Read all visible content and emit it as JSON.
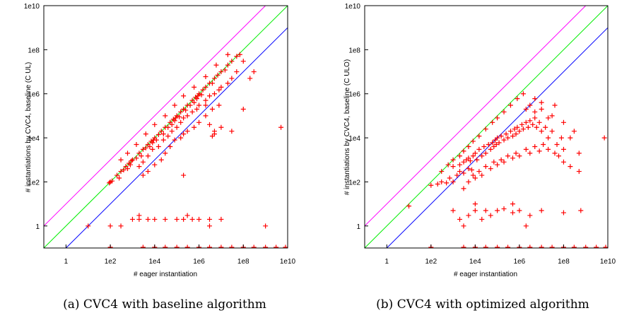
{
  "chart_data": [
    {
      "type": "scatter",
      "title": "",
      "xlabel": "# eager instantiation",
      "ylabel": "# instantiations by CVC4, baseline (C UL)",
      "caption": "(a) CVC4 with baseline algorithm",
      "x_scale": "log",
      "y_scale": "log",
      "xlim": [
        0.1,
        10000000000
      ],
      "ylim": [
        0.1,
        10000000000
      ],
      "x_ticks": [
        {
          "v": 1,
          "label": "1"
        },
        {
          "v": 100,
          "label": "1e2"
        },
        {
          "v": 10000,
          "label": "1e4"
        },
        {
          "v": 1000000,
          "label": "1e6"
        },
        {
          "v": 100000000,
          "label": "1e8"
        },
        {
          "v": 10000000000,
          "label": "1e10"
        }
      ],
      "y_ticks": [
        {
          "v": 1,
          "label": "1"
        },
        {
          "v": 100,
          "label": "1e2"
        },
        {
          "v": 10000,
          "label": "1e4"
        },
        {
          "v": 1000000,
          "label": "1e6"
        },
        {
          "v": 100000000,
          "label": "1e8"
        },
        {
          "v": 10000000000,
          "label": "1e10"
        }
      ],
      "grid": false,
      "marker": "+",
      "marker_color": "#ff0000",
      "reference_lines": [
        {
          "name": "y = 10x",
          "factor": 10,
          "color": "#ff00ff"
        },
        {
          "name": "y = x",
          "factor": 1,
          "color": "#00ee00"
        },
        {
          "name": "y = x/10",
          "factor": 0.1,
          "color": "#0000ff"
        }
      ],
      "points": [
        [
          10,
          1
        ],
        [
          100.0,
          1
        ],
        [
          300.0,
          1
        ],
        [
          1000.0,
          2
        ],
        [
          2000.0,
          2
        ],
        [
          5000.0,
          2
        ],
        [
          10000.0,
          2
        ],
        [
          30000.0,
          2
        ],
        [
          100000.0,
          2
        ],
        [
          200000.0,
          2
        ],
        [
          500000.0,
          2
        ],
        [
          1000000.0,
          2
        ],
        [
          3000000.0,
          2
        ],
        [
          10000000.0,
          2
        ],
        [
          2000.0,
          3
        ],
        [
          300000.0,
          3
        ],
        [
          3000000.0,
          1
        ],
        [
          1000000000.0,
          1
        ],
        [
          90,
          90
        ],
        [
          100,
          100
        ],
        [
          120,
          110
        ],
        [
          200,
          200
        ],
        [
          250,
          150
        ],
        [
          300,
          300
        ],
        [
          400,
          350
        ],
        [
          500,
          500
        ],
        [
          600,
          400
        ],
        [
          700,
          700
        ],
        [
          800,
          600
        ],
        [
          900,
          900
        ],
        [
          1000.0,
          1000.0
        ],
        [
          1500.0,
          1200.0
        ],
        [
          2000.0,
          2000.0
        ],
        [
          2500.0,
          1500.0
        ],
        [
          3000.0,
          3000.0
        ],
        [
          4000.0,
          3500.0
        ],
        [
          5000.0,
          5000.0
        ],
        [
          6000.0,
          4000.0
        ],
        [
          7000.0,
          7000.0
        ],
        [
          8000.0,
          6000.0
        ],
        [
          9000.0,
          8000.0
        ],
        [
          10000.0,
          10000.0
        ],
        [
          12000.0,
          8000.0
        ],
        [
          15000.0,
          14000.0
        ],
        [
          20000.0,
          20000.0
        ],
        [
          25000.0,
          15000.0
        ],
        [
          30000.0,
          30000.0
        ],
        [
          40000.0,
          30000.0
        ],
        [
          50000.0,
          50000.0
        ],
        [
          60000.0,
          40000.0
        ],
        [
          70000.0,
          70000.0
        ],
        [
          80000.0,
          60000.0
        ],
        [
          90000.0,
          80000.0
        ],
        [
          100000.0,
          100000.0
        ],
        [
          130000.0,
          90000.0
        ],
        [
          150000.0,
          150000.0
        ],
        [
          200000.0,
          200000.0
        ],
        [
          250000.0,
          180000.0
        ],
        [
          300000.0,
          300000.0
        ],
        [
          400000.0,
          300000.0
        ],
        [
          500000.0,
          500000.0
        ],
        [
          600000.0,
          400000.0
        ],
        [
          700000.0,
          700000.0
        ],
        [
          800000.0,
          600000.0
        ],
        [
          900000.0,
          800000.0
        ],
        [
          1000000.0,
          1000000.0
        ],
        [
          1300000.0,
          900000.0
        ],
        [
          1500000.0,
          1500000.0
        ],
        [
          2000000.0,
          2000000.0
        ],
        [
          3000000.0,
          3000000.0
        ],
        [
          4000000.0,
          3000000.0
        ],
        [
          5000000.0,
          5000000.0
        ],
        [
          7000000.0,
          7000000.0
        ],
        [
          10000000.0,
          10000000.0
        ],
        [
          15000000.0,
          12000000.0
        ],
        [
          20000000.0,
          20000000.0
        ],
        [
          30000000.0,
          30000000.0
        ],
        [
          50000000.0,
          50000000.0
        ],
        [
          70000000.0,
          60000000.0
        ],
        [
          2000.0,
          500.0
        ],
        [
          3000.0,
          800.0
        ],
        [
          5000.0,
          1500.0
        ],
        [
          8000.0,
          3000.0
        ],
        [
          15000.0,
          4000.0
        ],
        [
          25000.0,
          8000.0
        ],
        [
          40000.0,
          12000.0
        ],
        [
          60000.0,
          20000.0
        ],
        [
          100000.0,
          30000.0
        ],
        [
          150000.0,
          50000.0
        ],
        [
          200000.0,
          80000.0
        ],
        [
          300000.0,
          100000.0
        ],
        [
          500000.0,
          150000.0
        ],
        [
          800000.0,
          200000.0
        ],
        [
          1000000.0,
          300000.0
        ],
        [
          2000000.0,
          500000.0
        ],
        [
          3000000.0,
          800000.0
        ],
        [
          5000000.0,
          1000000.0
        ],
        [
          8000000.0,
          1500000.0
        ],
        [
          10000000.0,
          2000000.0
        ],
        [
          20000000.0,
          3000000.0
        ],
        [
          30000000.0,
          5000000.0
        ],
        [
          50000000.0,
          10000000.0
        ],
        [
          100000000.0,
          30000000.0
        ],
        [
          200000000.0,
          5000000.0
        ],
        [
          300000000.0,
          10000000.0
        ],
        [
          3000.0,
          200.0
        ],
        [
          5000.0,
          300.0
        ],
        [
          10000.0,
          600.0
        ],
        [
          20000.0,
          1000.0
        ],
        [
          30000.0,
          2000.0
        ],
        [
          50000.0,
          4000.0
        ],
        [
          80000.0,
          8000.0
        ],
        [
          150000.0,
          10000.0
        ],
        [
          300000.0,
          20000.0
        ],
        [
          600000.0,
          30000.0
        ],
        [
          1000000.0,
          50000.0
        ],
        [
          2000000.0,
          100000.0
        ],
        [
          4000000.0,
          200000.0
        ],
        [
          8000000.0,
          300000.0
        ],
        [
          3000000.0,
          40000.0
        ],
        [
          5000000.0,
          20000.0
        ],
        [
          10000000.0,
          30000.0
        ],
        [
          30000000.0,
          20000.0
        ],
        [
          5000000.0,
          15000.0
        ],
        [
          4000000.0,
          12000.0
        ],
        [
          200000.0,
          15000.0
        ],
        [
          2000000.0,
          300000.0
        ],
        [
          100000000.0,
          200000.0
        ],
        [
          200000.0,
          200
        ],
        [
          5000000000.0,
          30000.0
        ],
        [
          300,
          1000.0
        ],
        [
          600,
          2000.0
        ],
        [
          1500.0,
          5000.0
        ],
        [
          4000.0,
          15000.0
        ],
        [
          10000.0,
          40000.0
        ],
        [
          30000.0,
          100000.0
        ],
        [
          80000.0,
          300000.0
        ],
        [
          200000.0,
          800000.0
        ],
        [
          600000.0,
          2000000.0
        ],
        [
          2000000.0,
          6000000.0
        ],
        [
          6000000.0,
          20000000.0
        ],
        [
          20000000.0,
          60000000.0
        ]
      ]
    },
    {
      "type": "scatter",
      "title": "",
      "xlabel": "# eager instantiation",
      "ylabel": "# instantiations by CVC4, baseline (C ULO)",
      "caption": "(b) CVC4 with optimized algorithm",
      "x_scale": "log",
      "y_scale": "log",
      "xlim": [
        0.1,
        10000000000
      ],
      "ylim": [
        0.1,
        10000000000
      ],
      "x_ticks": [
        {
          "v": 1,
          "label": "1"
        },
        {
          "v": 100,
          "label": "1e2"
        },
        {
          "v": 10000,
          "label": "1e4"
        },
        {
          "v": 1000000,
          "label": "1e6"
        },
        {
          "v": 100000000,
          "label": "1e8"
        },
        {
          "v": 10000000000,
          "label": "1e10"
        }
      ],
      "y_ticks": [
        {
          "v": 1,
          "label": "1"
        },
        {
          "v": 100,
          "label": "1e2"
        },
        {
          "v": 10000,
          "label": "1e4"
        },
        {
          "v": 1000000,
          "label": "1e6"
        },
        {
          "v": 100000000,
          "label": "1e8"
        },
        {
          "v": 10000000000,
          "label": "1e10"
        }
      ],
      "grid": false,
      "marker": "+",
      "marker_color": "#ff0000",
      "reference_lines": [
        {
          "name": "y = 10x",
          "factor": 10,
          "color": "#ff00ff"
        },
        {
          "name": "y = x",
          "factor": 1,
          "color": "#00ee00"
        },
        {
          "name": "y = x/10",
          "factor": 0.1,
          "color": "#0000ff"
        }
      ],
      "points": [
        [
          10,
          8
        ],
        [
          100,
          70
        ],
        [
          200,
          80
        ],
        [
          300,
          100
        ],
        [
          500,
          90
        ],
        [
          700,
          150
        ],
        [
          1000.0,
          100
        ],
        [
          1500.0,
          200
        ],
        [
          2000.0,
          300
        ],
        [
          3000.0,
          250
        ],
        [
          5000.0,
          400
        ],
        [
          7000.0,
          350
        ],
        [
          1000.0,
          500
        ],
        [
          2000.0,
          600
        ],
        [
          3000.0,
          800
        ],
        [
          4000.0,
          1000.0
        ],
        [
          5000.0,
          1200.0
        ],
        [
          6000.0,
          900
        ],
        [
          8000.0,
          1500.0
        ],
        [
          10000.0,
          2000.0
        ],
        [
          12000.0,
          1000.0
        ],
        [
          15000.0,
          3000.0
        ],
        [
          20000.0,
          1500.0
        ],
        [
          25000.0,
          4000.0
        ],
        [
          30000.0,
          2000.0
        ],
        [
          40000.0,
          5000.0
        ],
        [
          50000.0,
          3000.0
        ],
        [
          60000.0,
          6000.0
        ],
        [
          70000.0,
          4000.0
        ],
        [
          80000.0,
          8000.0
        ],
        [
          90000.0,
          5000.0
        ],
        [
          100000.0,
          10000.0
        ],
        [
          120000.0,
          6000.0
        ],
        [
          150000.0,
          12000.0
        ],
        [
          200000.0,
          8000.0
        ],
        [
          250000.0,
          15000.0
        ],
        [
          300000.0,
          10000.0
        ],
        [
          400000.0,
          20000.0
        ],
        [
          500000.0,
          12000.0
        ],
        [
          600000.0,
          25000.0
        ],
        [
          700000.0,
          15000.0
        ],
        [
          800000.0,
          30000.0
        ],
        [
          1000000.0,
          20000.0
        ],
        [
          1300000.0,
          40000.0
        ],
        [
          1500000.0,
          25000.0
        ],
        [
          2000000.0,
          50000.0
        ],
        [
          2500000.0,
          30000.0
        ],
        [
          3000000.0,
          60000.0
        ],
        [
          4000000.0,
          40000.0
        ],
        [
          5000000.0,
          80000.0
        ],
        [
          6000000.0,
          30000.0
        ],
        [
          8000000.0,
          50000.0
        ],
        [
          10000000.0,
          20000.0
        ],
        [
          15000000.0,
          30000.0
        ],
        [
          20000000.0,
          10000.0
        ],
        [
          30000000.0,
          20000.0
        ],
        [
          50000000.0,
          5000.0
        ],
        [
          80000000.0,
          10000.0
        ],
        [
          100000000.0,
          3000.0
        ],
        [
          200000000.0,
          10000.0
        ],
        [
          500000000.0,
          2000.0
        ],
        [
          7000000000.0,
          10000.0
        ],
        [
          3000.0,
          50
        ],
        [
          5000.0,
          100
        ],
        [
          8000.0,
          200
        ],
        [
          10000.0,
          150
        ],
        [
          15000.0,
          300
        ],
        [
          20000.0,
          200
        ],
        [
          30000.0,
          500
        ],
        [
          50000.0,
          400
        ],
        [
          70000.0,
          800
        ],
        [
          100000.0,
          600
        ],
        [
          150000.0,
          1000.0
        ],
        [
          200000.0,
          800
        ],
        [
          300000.0,
          1500.0
        ],
        [
          500000.0,
          1200.0
        ],
        [
          700000.0,
          2000.0
        ],
        [
          1000000.0,
          1500.0
        ],
        [
          2000000.0,
          3000.0
        ],
        [
          3000000.0,
          2000.0
        ],
        [
          5000000.0,
          4000.0
        ],
        [
          8000000.0,
          2500.0
        ],
        [
          12000000.0,
          5000.0
        ],
        [
          20000000.0,
          3000.0
        ],
        [
          40000000.0,
          2000.0
        ],
        [
          60000000.0,
          1500.0
        ],
        [
          100000000.0,
          800
        ],
        [
          200000000.0,
          500
        ],
        [
          500000000.0,
          300
        ],
        [
          300,
          300
        ],
        [
          600,
          600
        ],
        [
          1000.0,
          1000.0
        ],
        [
          2000.0,
          1500.0
        ],
        [
          3000.0,
          2500.0
        ],
        [
          5000.0,
          4000.0
        ],
        [
          8000.0,
          7000.0
        ],
        [
          15000.0,
          12000.0
        ],
        [
          30000.0,
          25000.0
        ],
        [
          60000.0,
          50000.0
        ],
        [
          100000.0,
          80000.0
        ],
        [
          200000.0,
          150000.0
        ],
        [
          400000.0,
          300000.0
        ],
        [
          800000.0,
          600000.0
        ],
        [
          1500000.0,
          1000000.0
        ],
        [
          2000000.0,
          200000.0
        ],
        [
          3000000.0,
          300000.0
        ],
        [
          5000000.0,
          150000.0
        ],
        [
          10000000.0,
          200000.0
        ],
        [
          20000000.0,
          80000.0
        ],
        [
          30000000.0,
          100000.0
        ],
        [
          5000000.0,
          600000.0
        ],
        [
          10000000.0,
          400000.0
        ],
        [
          40000000.0,
          300000.0
        ],
        [
          100000000.0,
          50000.0
        ],
        [
          300000000.0,
          20000.0
        ],
        [
          1000.0,
          5
        ],
        [
          5000.0,
          3
        ],
        [
          10000.0,
          5
        ],
        [
          20000.0,
          2
        ],
        [
          30000.0,
          5
        ],
        [
          50000.0,
          3
        ],
        [
          100000.0,
          5
        ],
        [
          200000.0,
          6
        ],
        [
          500000.0,
          4
        ],
        [
          1000000.0,
          5
        ],
        [
          3000000.0,
          3
        ],
        [
          10000000.0,
          5
        ],
        [
          100000000.0,
          4
        ],
        [
          2000.0,
          2
        ],
        [
          3000.0,
          1
        ],
        [
          10000.0,
          10
        ],
        [
          500000.0,
          10
        ],
        [
          2000000.0,
          1
        ],
        [
          600000000.0,
          5
        ]
      ]
    }
  ]
}
